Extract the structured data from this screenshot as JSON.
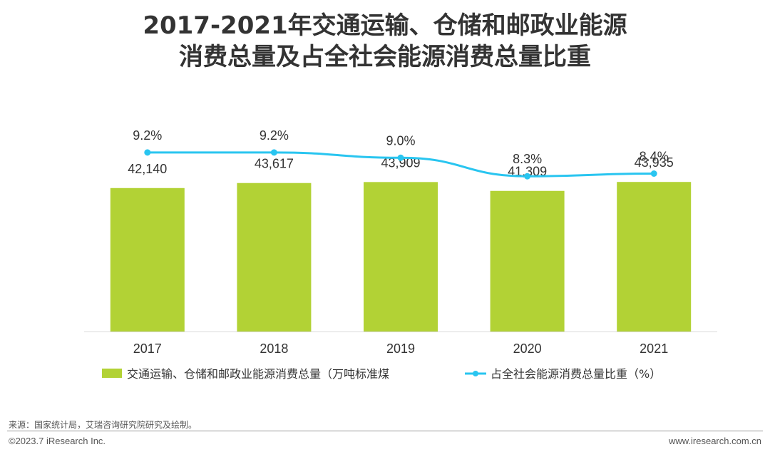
{
  "chart_data": {
    "type": "bar",
    "title": [
      "2017-2021年交通运输、仓储和邮政业能源",
      "消费总量及占全社会能源消费总量比重"
    ],
    "categories": [
      "2017",
      "2018",
      "2019",
      "2020",
      "2021"
    ],
    "series": [
      {
        "name": "交通运输、仓储和邮政业能源消费总量（万吨标准煤",
        "type": "bar",
        "values": [
          42140,
          43617,
          43909,
          41309,
          43935
        ],
        "labels": [
          "42,140",
          "43,617",
          "43,909",
          "41,309",
          "43,935"
        ],
        "color": "#b2d235"
      },
      {
        "name": "占全社会能源消费总量比重（%）",
        "type": "line",
        "values": [
          9.2,
          9.2,
          9.0,
          8.3,
          8.4
        ],
        "labels": [
          "9.2%",
          "9.2%",
          "9.0%",
          "8.3%",
          "8.4%"
        ],
        "color": "#29c5f0"
      }
    ],
    "ylim_bar": [
      0,
      80000
    ],
    "ylim_line": [
      0,
      12
    ],
    "legend": "bottom",
    "grid": false
  },
  "footer": {
    "source": "来源：国家统计局，艾瑞咨询研究院研究及绘制。",
    "copyright": "©2023.7 iResearch Inc.",
    "website": "www.iresearch.com.cn"
  }
}
